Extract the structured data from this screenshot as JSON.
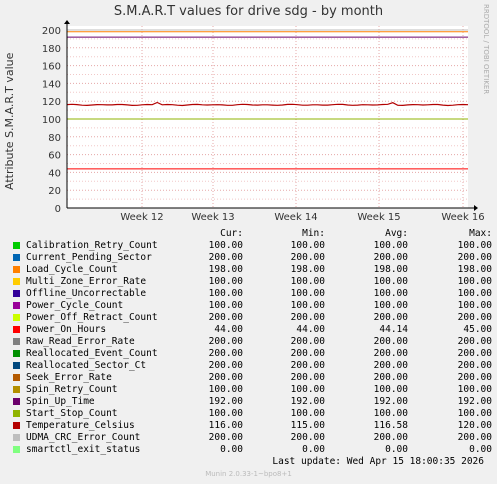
{
  "chart_data": {
    "type": "line",
    "title": "S.M.A.R.T values for drive sdg - by month",
    "ylabel": "Attribute S.M.A.R.T value",
    "xlabel": "",
    "ylim": [
      0,
      200
    ],
    "yticks": [
      0,
      20,
      40,
      60,
      80,
      100,
      120,
      140,
      160,
      180,
      200
    ],
    "xticks": [
      "Week 12",
      "Week 13",
      "Week 14",
      "Week 15",
      "Week 16"
    ],
    "grid": true,
    "columns": [
      "Cur:",
      "Min:",
      "Avg:",
      "Max:"
    ],
    "series": [
      {
        "name": "Calibration_Retry_Count",
        "color": "#00cc00",
        "cur": "100.00",
        "min": "100.00",
        "avg": "100.00",
        "max": "100.00"
      },
      {
        "name": "Current_Pending_Sector",
        "color": "#0066b3",
        "cur": "200.00",
        "min": "200.00",
        "avg": "200.00",
        "max": "200.00"
      },
      {
        "name": "Load_Cycle_Count",
        "color": "#ff8000",
        "cur": "198.00",
        "min": "198.00",
        "avg": "198.00",
        "max": "198.00"
      },
      {
        "name": "Multi_Zone_Error_Rate",
        "color": "#ffcc00",
        "cur": "100.00",
        "min": "100.00",
        "avg": "100.00",
        "max": "100.00"
      },
      {
        "name": "Offline_Uncorrectable",
        "color": "#330099",
        "cur": "100.00",
        "min": "100.00",
        "avg": "100.00",
        "max": "100.00"
      },
      {
        "name": "Power_Cycle_Count",
        "color": "#990099",
        "cur": "100.00",
        "min": "100.00",
        "avg": "100.00",
        "max": "100.00"
      },
      {
        "name": "Power_Off_Retract_Count",
        "color": "#ccff00",
        "cur": "200.00",
        "min": "200.00",
        "avg": "200.00",
        "max": "200.00"
      },
      {
        "name": "Power_On_Hours",
        "color": "#ff0000",
        "cur": "44.00",
        "min": "44.00",
        "avg": "44.14",
        "max": "45.00"
      },
      {
        "name": "Raw_Read_Error_Rate",
        "color": "#808080",
        "cur": "200.00",
        "min": "200.00",
        "avg": "200.00",
        "max": "200.00"
      },
      {
        "name": "Reallocated_Event_Count",
        "color": "#008f00",
        "cur": "200.00",
        "min": "200.00",
        "avg": "200.00",
        "max": "200.00"
      },
      {
        "name": "Reallocated_Sector_Ct",
        "color": "#00487d",
        "cur": "200.00",
        "min": "200.00",
        "avg": "200.00",
        "max": "200.00"
      },
      {
        "name": "Seek_Error_Rate",
        "color": "#b35a00",
        "cur": "200.00",
        "min": "200.00",
        "avg": "200.00",
        "max": "200.00"
      },
      {
        "name": "Spin_Retry_Count",
        "color": "#b38f00",
        "cur": "100.00",
        "min": "100.00",
        "avg": "100.00",
        "max": "100.00"
      },
      {
        "name": "Spin_Up_Time",
        "color": "#6b006b",
        "cur": "192.00",
        "min": "192.00",
        "avg": "192.00",
        "max": "192.00"
      },
      {
        "name": "Start_Stop_Count",
        "color": "#8fb300",
        "cur": "100.00",
        "min": "100.00",
        "avg": "100.00",
        "max": "100.00"
      },
      {
        "name": "Temperature_Celsius",
        "color": "#b30000",
        "cur": "116.00",
        "min": "115.00",
        "avg": "116.58",
        "max": "120.00"
      },
      {
        "name": "UDMA_CRC_Error_Count",
        "color": "#bebebe",
        "cur": "200.00",
        "min": "200.00",
        "avg": "200.00",
        "max": "200.00"
      },
      {
        "name": "smartctl_exit_status",
        "color": "#80ff80",
        "cur": "0.00",
        "min": "0.00",
        "avg": "0.00",
        "max": "0.00"
      }
    ]
  },
  "footer": {
    "last_update": "Last update:  Wed Apr 15 18:00:35 2026",
    "munin": "Munin 2.0.33-1~bpo8+1"
  },
  "side_label": "RRDTOOL / TOBI OETIKER"
}
